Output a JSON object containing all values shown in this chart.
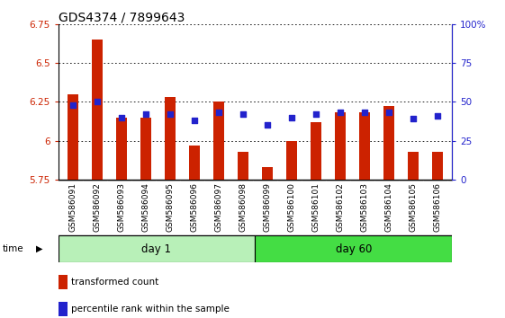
{
  "title": "GDS4374 / 7899643",
  "samples": [
    "GSM586091",
    "GSM586092",
    "GSM586093",
    "GSM586094",
    "GSM586095",
    "GSM586096",
    "GSM586097",
    "GSM586098",
    "GSM586099",
    "GSM586100",
    "GSM586101",
    "GSM586102",
    "GSM586103",
    "GSM586104",
    "GSM586105",
    "GSM586106"
  ],
  "bar_values": [
    6.3,
    6.65,
    6.15,
    6.15,
    6.28,
    5.97,
    6.25,
    5.93,
    5.83,
    6.0,
    6.12,
    6.18,
    6.18,
    6.22,
    5.93,
    5.93
  ],
  "dot_values": [
    48,
    50,
    40,
    42,
    42,
    38,
    43,
    42,
    35,
    40,
    42,
    43,
    43,
    43,
    39,
    41
  ],
  "ylim_left": [
    5.75,
    6.75
  ],
  "ylim_right": [
    0,
    100
  ],
  "yticks_left": [
    5.75,
    6.0,
    6.25,
    6.5,
    6.75
  ],
  "yticks_right": [
    0,
    25,
    50,
    75,
    100
  ],
  "ytick_labels_left": [
    "5.75",
    "6",
    "6.25",
    "6.5",
    "6.75"
  ],
  "ytick_labels_right": [
    "0",
    "25",
    "50",
    "75",
    "100%"
  ],
  "bar_color": "#cc2200",
  "dot_color": "#2222cc",
  "bar_bottom": 5.75,
  "day1_color": "#b8f0b8",
  "day60_color": "#44dd44",
  "day1_samples": 8,
  "day60_samples": 8,
  "day1_label": "day 1",
  "day60_label": "day 60",
  "legend_bar_label": "transformed count",
  "legend_dot_label": "percentile rank within the sample",
  "xlabel_time": "time",
  "xtick_bg": "#cccccc",
  "title_fontsize": 10,
  "tick_fontsize": 7.5,
  "bar_width": 0.45
}
